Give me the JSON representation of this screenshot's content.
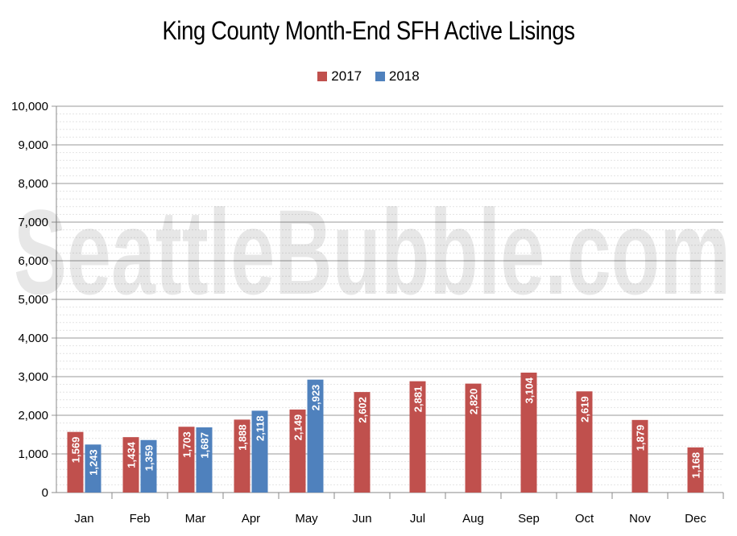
{
  "chart_data": {
    "type": "bar",
    "title": "King County Month-End SFH Active Lisings",
    "watermark": "SeattleBubble.com",
    "categories": [
      "Jan",
      "Feb",
      "Mar",
      "Apr",
      "May",
      "Jun",
      "Jul",
      "Aug",
      "Sep",
      "Oct",
      "Nov",
      "Dec"
    ],
    "series": [
      {
        "name": "2017",
        "color": "#c0504d",
        "values": [
          1569,
          1434,
          1703,
          1888,
          2149,
          2602,
          2881,
          2820,
          3104,
          2619,
          1879,
          1168
        ],
        "labels": [
          "1,569",
          "1,434",
          "1,703",
          "1,888",
          "2,149",
          "2,602",
          "2,881",
          "2,820",
          "3,104",
          "2,619",
          "1,879",
          "1,168"
        ]
      },
      {
        "name": "2018",
        "color": "#4f81bd",
        "values": [
          1243,
          1359,
          1687,
          2118,
          2923,
          null,
          null,
          null,
          null,
          null,
          null,
          null
        ],
        "labels": [
          "1,243",
          "1,359",
          "1,687",
          "2,118",
          "2,923",
          "",
          "",
          "",
          "",
          "",
          "",
          ""
        ]
      }
    ],
    "ylim": [
      0,
      10000
    ],
    "yticks": [
      0,
      1000,
      2000,
      3000,
      4000,
      5000,
      6000,
      7000,
      8000,
      9000,
      10000
    ],
    "ytick_labels": [
      "0",
      "1,000",
      "2,000",
      "3,000",
      "4,000",
      "5,000",
      "6,000",
      "7,000",
      "8,000",
      "9,000",
      "10,000"
    ],
    "grid": true,
    "legend_position": "top-center"
  }
}
